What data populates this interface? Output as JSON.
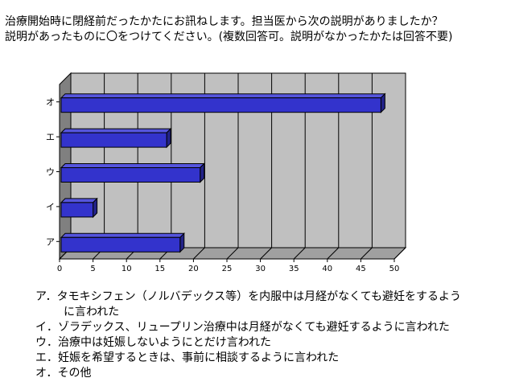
{
  "question": {
    "line1": "治療開始時に閉経前だったかたにお訊ねします。担当医から次の説明がありましたか？",
    "line2": "説明があったものに〇をつけてください。(複数回答可。説明がなかったかたは回答不要)"
  },
  "chart_data": {
    "type": "bar",
    "orientation": "horizontal",
    "style": "3d",
    "categories": [
      "ア",
      "イ",
      "ウ",
      "エ",
      "オ"
    ],
    "values": [
      18,
      5,
      21,
      16,
      48
    ],
    "xlim": [
      0,
      50
    ],
    "ticks": [
      "0",
      "5",
      "10",
      "15",
      "20",
      "25",
      "30",
      "35",
      "40",
      "45",
      "50"
    ],
    "grid": true,
    "colors": {
      "bar": "#3333cc",
      "bar_top": "#5555dd",
      "bar_side": "#222288",
      "wall": "#c0c0c0",
      "floor": "#808080"
    }
  },
  "legend": {
    "items": [
      {
        "line": "ア．タモキシフェン（ノルバデックス等）を内服中は月経がなくても避妊をするよう",
        "cont": "に言われた"
      },
      {
        "line": "イ．ゾラデックス、リュープリン治療中は月経がなくても避妊するように言われた"
      },
      {
        "line": "ウ．治療中は妊娠しないようにとだけ言われた"
      },
      {
        "line": "エ．妊娠を希望するときは、事前に相談するように言われた"
      },
      {
        "line": "オ．その他"
      }
    ]
  }
}
